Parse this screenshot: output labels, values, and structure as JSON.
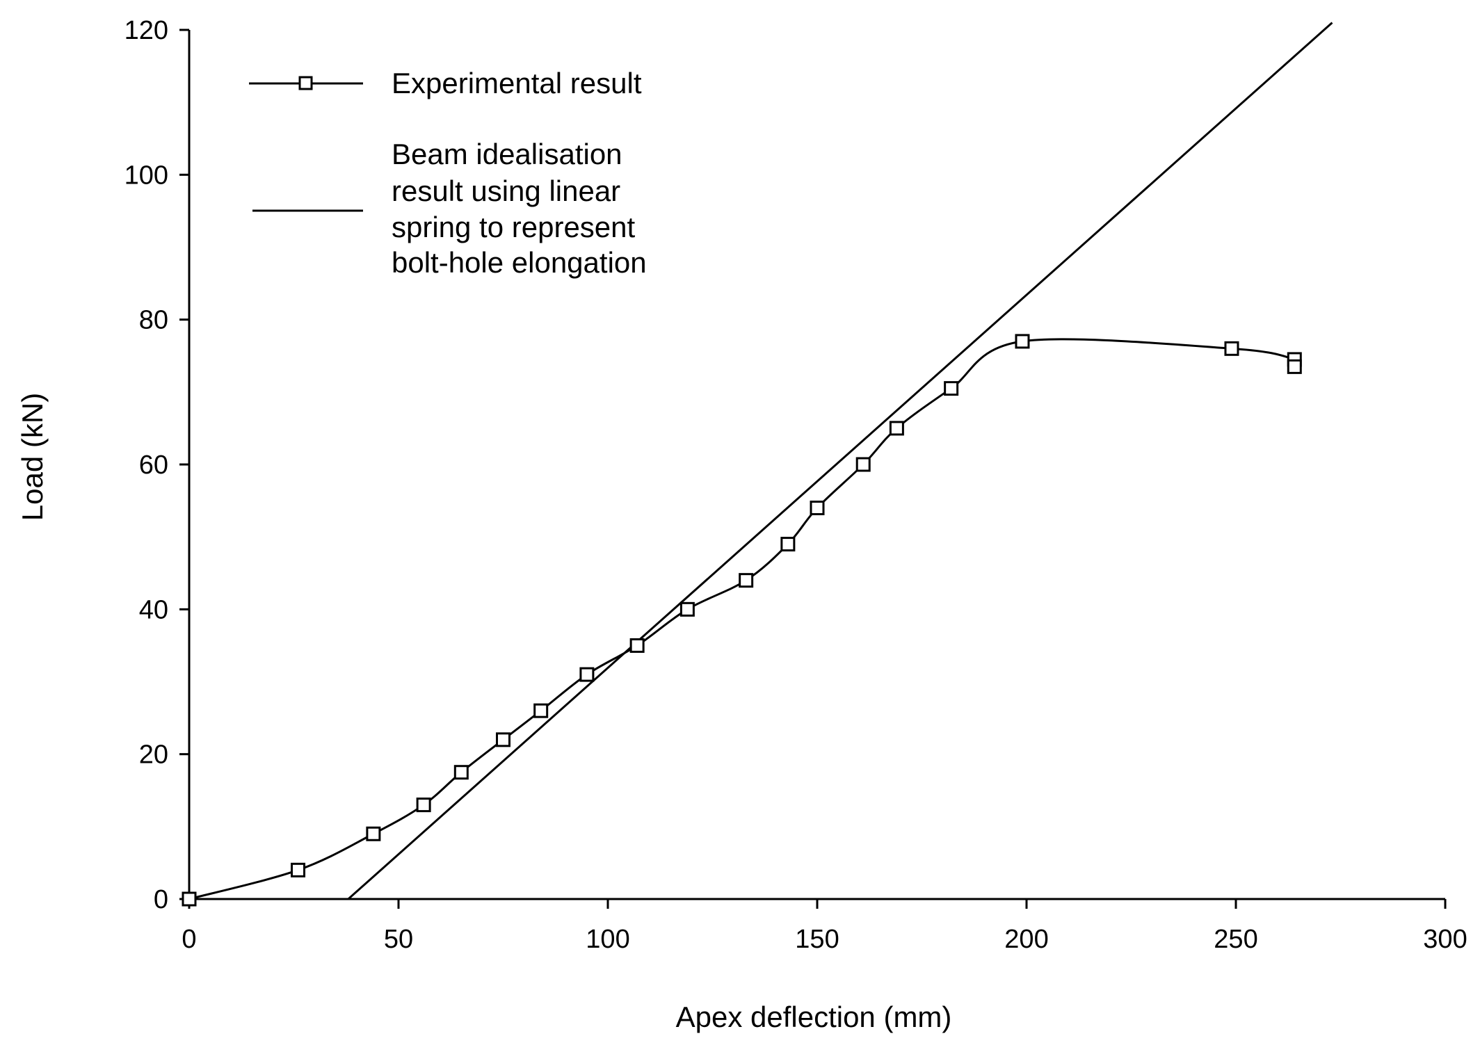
{
  "chart_data": {
    "type": "line",
    "title": "",
    "xlabel": "Apex deflection (mm)",
    "ylabel": "Load (kN)",
    "xlim": [
      0,
      300
    ],
    "ylim": [
      0,
      120
    ],
    "xticks": [
      0,
      50,
      100,
      150,
      200,
      250,
      300
    ],
    "yticks": [
      0,
      20,
      40,
      60,
      80,
      100,
      120
    ],
    "xtick_labels": [
      "0",
      "50",
      "100",
      "150",
      "200",
      "250",
      "300"
    ],
    "ytick_labels": [
      "0",
      "20",
      "40",
      "60",
      "80",
      "100",
      "120"
    ],
    "grid": false,
    "legend_position": "top-left",
    "series": [
      {
        "name": "Experimental result",
        "legend_lines": [
          "Experimental result"
        ],
        "marker": "square",
        "color": "#000000",
        "x": [
          0,
          26,
          44,
          56,
          65,
          75,
          84,
          95,
          107,
          119,
          133,
          143,
          150,
          161,
          169,
          182,
          199,
          249,
          264,
          264
        ],
        "y": [
          0,
          4,
          9,
          13,
          17.5,
          22,
          26,
          31,
          35,
          40,
          44,
          49,
          54,
          60,
          65,
          70.5,
          77,
          76,
          74.5,
          73.5
        ]
      },
      {
        "name": "Beam idealisation result using linear spring to represent bolt-hole elongation",
        "legend_lines": [
          "Beam idealisation",
          "result using linear",
          "spring to represent",
          "bolt-hole elongation"
        ],
        "marker": "none",
        "color": "#000000",
        "x": [
          38,
          273
        ],
        "y": [
          0,
          121
        ]
      }
    ]
  }
}
